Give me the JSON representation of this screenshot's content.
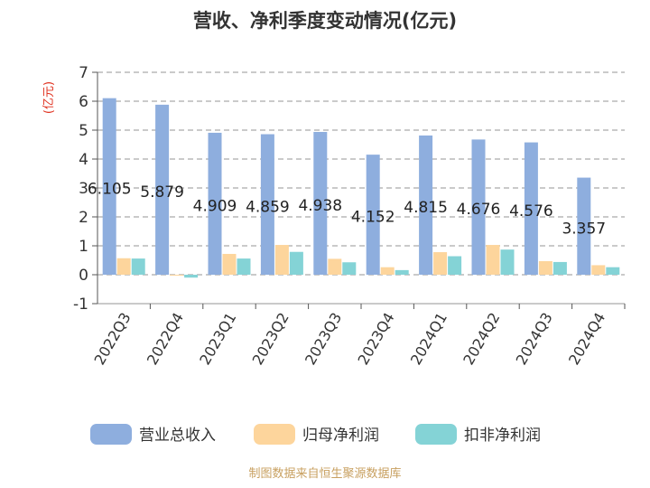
{
  "chart_data": {
    "type": "bar",
    "title": "营收、净利季度变动情况(亿元)",
    "unit_label": "(亿元)",
    "categories": [
      "2022Q3",
      "2022Q4",
      "2023Q1",
      "2023Q2",
      "2023Q3",
      "2023Q4",
      "2024Q1",
      "2024Q2",
      "2024Q3",
      "2024Q4"
    ],
    "series": [
      {
        "name": "营业总收入",
        "color": "#8eaede",
        "values": [
          6.105,
          5.879,
          4.909,
          4.859,
          4.938,
          4.152,
          4.815,
          4.676,
          4.576,
          3.357
        ]
      },
      {
        "name": "归母净利润",
        "color": "#fdd59c",
        "values": [
          0.57,
          -0.02,
          0.72,
          1.03,
          0.55,
          0.26,
          0.78,
          1.03,
          0.47,
          0.33
        ]
      },
      {
        "name": "扣非净利润",
        "color": "#84d3d6",
        "values": [
          0.56,
          -0.1,
          0.56,
          0.79,
          0.43,
          0.16,
          0.64,
          0.87,
          0.44,
          0.26
        ]
      }
    ],
    "data_labels": [
      "6.105",
      "5.879",
      "4.909",
      "4.859",
      "4.938",
      "4.152",
      "4.815",
      "4.676",
      "4.576",
      "3.357"
    ],
    "yticks": [
      "-1",
      "0",
      "1",
      "2",
      "3",
      "4",
      "5",
      "6",
      "7"
    ],
    "ylim": [
      -1,
      7
    ],
    "grid": true,
    "legend_position": "bottom"
  },
  "source": "制图数据来自恒生聚源数据库"
}
